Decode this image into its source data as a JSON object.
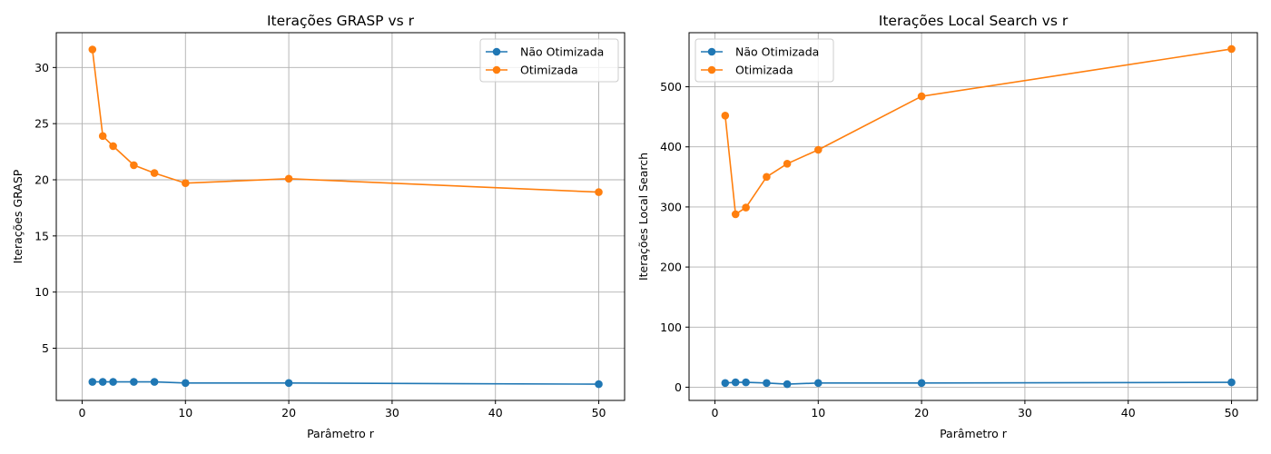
{
  "chart_data": [
    {
      "type": "line",
      "title": "Iterações GRASP vs r",
      "xlabel": "Parâmetro r",
      "ylabel": "Iterações GRASP",
      "xlim": [
        -2.5,
        52.5
      ],
      "ylim": [
        0.35,
        33.1
      ],
      "xticks": [
        0,
        10,
        20,
        30,
        40,
        50
      ],
      "yticks": [
        5,
        10,
        15,
        20,
        25,
        30
      ],
      "grid": true,
      "legend_position": "top-right",
      "x": [
        1,
        2,
        3,
        5,
        7,
        10,
        20,
        50
      ],
      "series": [
        {
          "name": "Não Otimizada",
          "color": "#1f77b4",
          "values": [
            2.0,
            2.0,
            2.0,
            2.0,
            2.0,
            1.9,
            1.9,
            1.8
          ]
        },
        {
          "name": "Otimizada",
          "color": "#ff7f0e",
          "values": [
            31.6,
            23.9,
            23.0,
            21.3,
            20.6,
            19.7,
            20.1,
            18.9
          ]
        }
      ]
    },
    {
      "type": "line",
      "title": "Iterações Local Search vs r",
      "xlabel": "Parâmetro r",
      "ylabel": "Iterações Local Search",
      "xlim": [
        -2.5,
        52.5
      ],
      "ylim": [
        -22,
        590
      ],
      "xticks": [
        0,
        10,
        20,
        30,
        40,
        50
      ],
      "yticks": [
        0,
        100,
        200,
        300,
        400,
        500
      ],
      "grid": true,
      "legend_position": "top-left",
      "x": [
        1,
        2,
        3,
        5,
        7,
        10,
        20,
        50
      ],
      "series": [
        {
          "name": "Não Otimizada",
          "color": "#1f77b4",
          "values": [
            7,
            8,
            8,
            7,
            5,
            7,
            7,
            8
          ]
        },
        {
          "name": "Otimizada",
          "color": "#ff7f0e",
          "values": [
            452,
            288,
            299,
            350,
            372,
            395,
            484,
            563
          ]
        }
      ]
    }
  ]
}
